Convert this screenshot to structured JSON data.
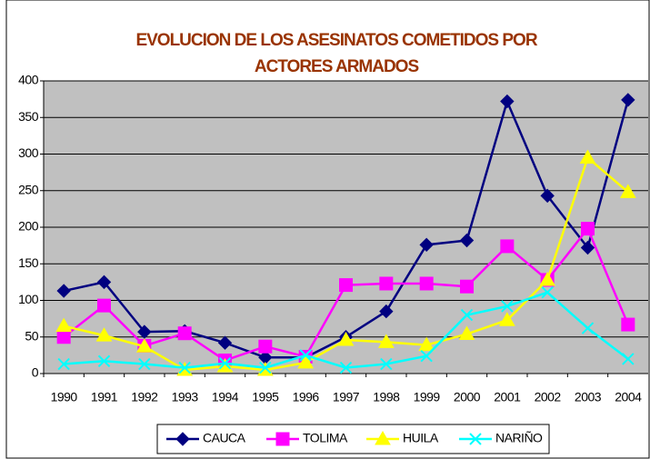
{
  "chart_data": {
    "type": "line",
    "title": [
      "EVOLUCION DE LOS ASESINATOS COMETIDOS POR",
      "ACTORES ARMADOS"
    ],
    "categories": [
      "1990",
      "1991",
      "1992",
      "1993",
      "1994",
      "1995",
      "1996",
      "1997",
      "1998",
      "1999",
      "2000",
      "2001",
      "2002",
      "2003",
      "2004"
    ],
    "series": [
      {
        "name": "CAUCA",
        "color": "#000080",
        "marker": "diamond",
        "values": [
          113,
          125,
          57,
          58,
          42,
          22,
          22,
          50,
          85,
          176,
          182,
          372,
          243,
          172,
          374
        ]
      },
      {
        "name": "TOLIMA",
        "color": "#ff00ff",
        "marker": "square",
        "values": [
          50,
          93,
          38,
          55,
          18,
          37,
          23,
          121,
          123,
          123,
          119,
          174,
          128,
          198,
          67
        ]
      },
      {
        "name": "HUILA",
        "color": "#ffff00",
        "marker": "triangle",
        "values": [
          65,
          52,
          37,
          5,
          10,
          5,
          15,
          46,
          43,
          39,
          54,
          73,
          128,
          295,
          248
        ]
      },
      {
        "name": "NARIÑO",
        "color": "#00ffff",
        "marker": "x",
        "values": [
          13,
          17,
          13,
          8,
          14,
          8,
          25,
          8,
          13,
          24,
          80,
          92,
          111,
          62,
          20
        ]
      }
    ],
    "ylim": [
      0,
      400
    ],
    "yticks": [
      0,
      50,
      100,
      150,
      200,
      250,
      300,
      350,
      400
    ],
    "grid": true,
    "legend": "bottom"
  }
}
